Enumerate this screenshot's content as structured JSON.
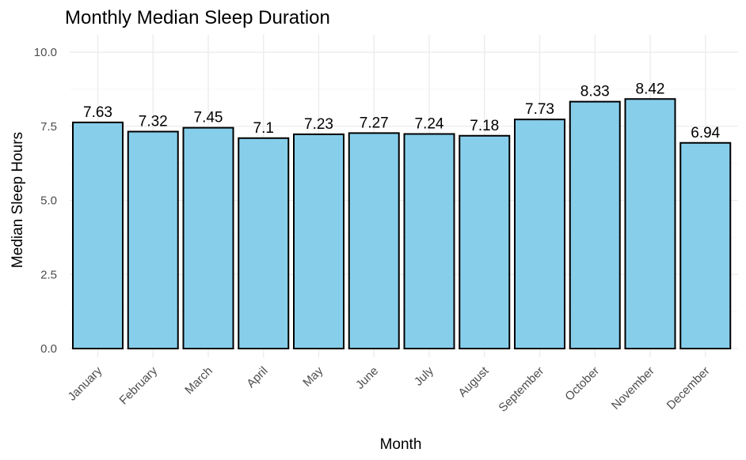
{
  "chart_data": {
    "type": "bar",
    "title": "Monthly Median Sleep Duration",
    "xlabel": "Month",
    "ylabel": "Median Sleep Hours",
    "categories": [
      "January",
      "February",
      "March",
      "April",
      "May",
      "June",
      "July",
      "August",
      "September",
      "October",
      "November",
      "December"
    ],
    "values": [
      7.63,
      7.32,
      7.45,
      7.1,
      7.23,
      7.27,
      7.24,
      7.18,
      7.73,
      8.33,
      8.42,
      6.94
    ],
    "value_labels": [
      "7.63",
      "7.32",
      "7.45",
      "7.1",
      "7.23",
      "7.27",
      "7.24",
      "7.18",
      "7.73",
      "8.33",
      "8.42",
      "6.94"
    ],
    "ylim": [
      0,
      10
    ],
    "yticks": [
      0,
      2.5,
      5,
      7.5,
      10
    ],
    "ytick_labels": [
      "0.0",
      "2.5",
      "5.0",
      "7.5",
      "10.0"
    ],
    "grid": true,
    "colors": {
      "bar_fill": "#87ceeb",
      "bar_outline": "#000000"
    }
  }
}
